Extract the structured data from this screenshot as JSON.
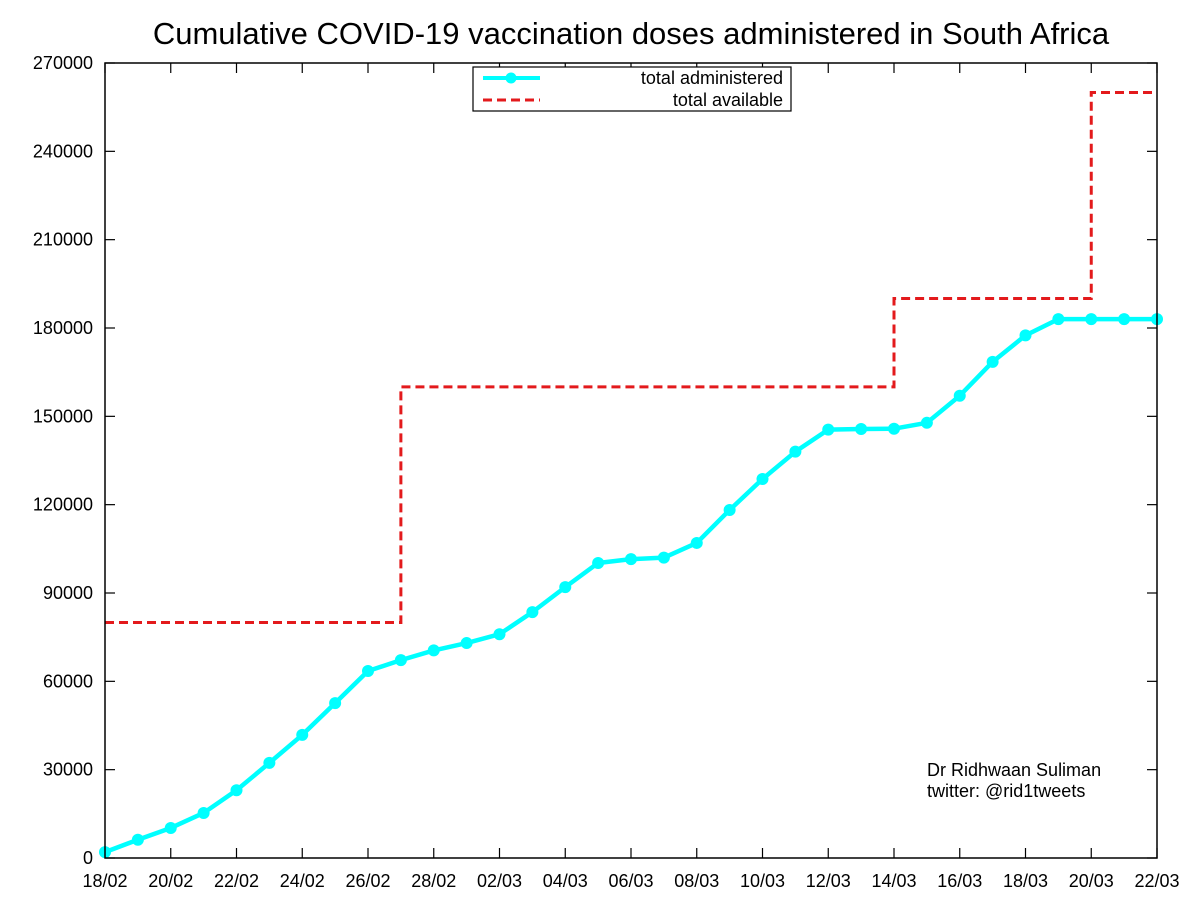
{
  "chart_data": {
    "type": "line",
    "title": "Cumulative COVID-19 vaccination doses administered in South Africa",
    "xlabel": "",
    "ylabel": "",
    "ylim": [
      0,
      270000
    ],
    "y_ticks": [
      0,
      30000,
      60000,
      90000,
      120000,
      150000,
      180000,
      210000,
      240000,
      270000
    ],
    "x_range_days": [
      0,
      32
    ],
    "x_tick_labels": [
      "18/02",
      "20/02",
      "22/02",
      "24/02",
      "26/02",
      "28/02",
      "02/03",
      "04/03",
      "06/03",
      "08/03",
      "10/03",
      "12/03",
      "14/03",
      "16/03",
      "18/03",
      "20/03",
      "22/03"
    ],
    "grid": false,
    "legend_position": "top-center",
    "series": [
      {
        "name": "total administered",
        "style": "line-points",
        "color": "#00ffff",
        "x": [
          0,
          1,
          2,
          3,
          4,
          5,
          6,
          7,
          8,
          9,
          10,
          11,
          12,
          13,
          14,
          15,
          16,
          17,
          18,
          19,
          20,
          21,
          22,
          23,
          24,
          25,
          26,
          27,
          28,
          29,
          30,
          31,
          32
        ],
        "values": [
          2000,
          6200,
          10200,
          15300,
          23000,
          32300,
          41800,
          52600,
          63500,
          67200,
          70500,
          73000,
          76000,
          83500,
          92000,
          100200,
          101500,
          102000,
          107000,
          118200,
          128700,
          138000,
          145500,
          145700,
          145800,
          147800,
          157000,
          168500,
          177500,
          183000,
          183000,
          183000,
          183000
        ]
      },
      {
        "name": "total available",
        "style": "dashed-step",
        "color": "#e31a1c",
        "steps": [
          {
            "x_start": 0,
            "x_end": 9,
            "value": 80000
          },
          {
            "x_start": 9,
            "x_end": 24,
            "value": 160000
          },
          {
            "x_start": 24,
            "x_end": 30,
            "value": 190000
          },
          {
            "x_start": 30,
            "x_end": 32,
            "value": 260000
          }
        ]
      }
    ],
    "annotations": [
      "Dr Ridhwaan Suliman",
      "twitter: @rid1tweets"
    ]
  }
}
